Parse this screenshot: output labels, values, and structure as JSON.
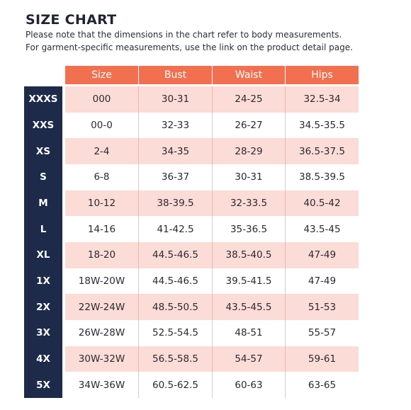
{
  "title": "SIZE CHART",
  "notes": [
    "Please note that the dimensions in the chart refer to body measurements.",
    "For garment-specific measurements, use the link on the product detail page."
  ],
  "columns": [
    "Size",
    "Bust",
    "Waist",
    "Hips"
  ],
  "rows": [
    {
      "label": "XXXS",
      "size": "000",
      "bust": "30-31",
      "waist": "24-25",
      "hips": "32.5-34"
    },
    {
      "label": "XXS",
      "size": "00-0",
      "bust": "32-33",
      "waist": "26-27",
      "hips": "34.5-35.5"
    },
    {
      "label": "XS",
      "size": "2-4",
      "bust": "34-35",
      "waist": "28-29",
      "hips": "36.5-37.5"
    },
    {
      "label": "S",
      "size": "6-8",
      "bust": "36-37",
      "waist": "30-31",
      "hips": "38.5-39.5"
    },
    {
      "label": "M",
      "size": "10-12",
      "bust": "38-39.5",
      "waist": "32-33.5",
      "hips": "40.5-42"
    },
    {
      "label": "L",
      "size": "14-16",
      "bust": "41-42.5",
      "waist": "35-36.5",
      "hips": "43.5-45"
    },
    {
      "label": "XL",
      "size": "18-20",
      "bust": "44.5-46.5",
      "waist": "38.5-40.5",
      "hips": "47-49"
    },
    {
      "label": "1X",
      "size": "18W-20W",
      "bust": "44.5-46.5",
      "waist": "39.5-41.5",
      "hips": "47-49"
    },
    {
      "label": "2X",
      "size": "22W-24W",
      "bust": "48.5-50.5",
      "waist": "43.5-45.5",
      "hips": "51-53"
    },
    {
      "label": "3X",
      "size": "26W-28W",
      "bust": "52.5-54.5",
      "waist": "48-51",
      "hips": "55-57"
    },
    {
      "label": "4X",
      "size": "30W-32W",
      "bust": "56.5-58.5",
      "waist": "54-57",
      "hips": "59-61"
    },
    {
      "label": "5X",
      "size": "34W-36W",
      "bust": "60.5-62.5",
      "waist": "60-63",
      "hips": "63-65"
    }
  ],
  "colors": {
    "header": "#f2704f",
    "sidebar": "#1d2a4a",
    "shaded_row": "#fcdcd6",
    "plain_row": "#ffffff"
  }
}
